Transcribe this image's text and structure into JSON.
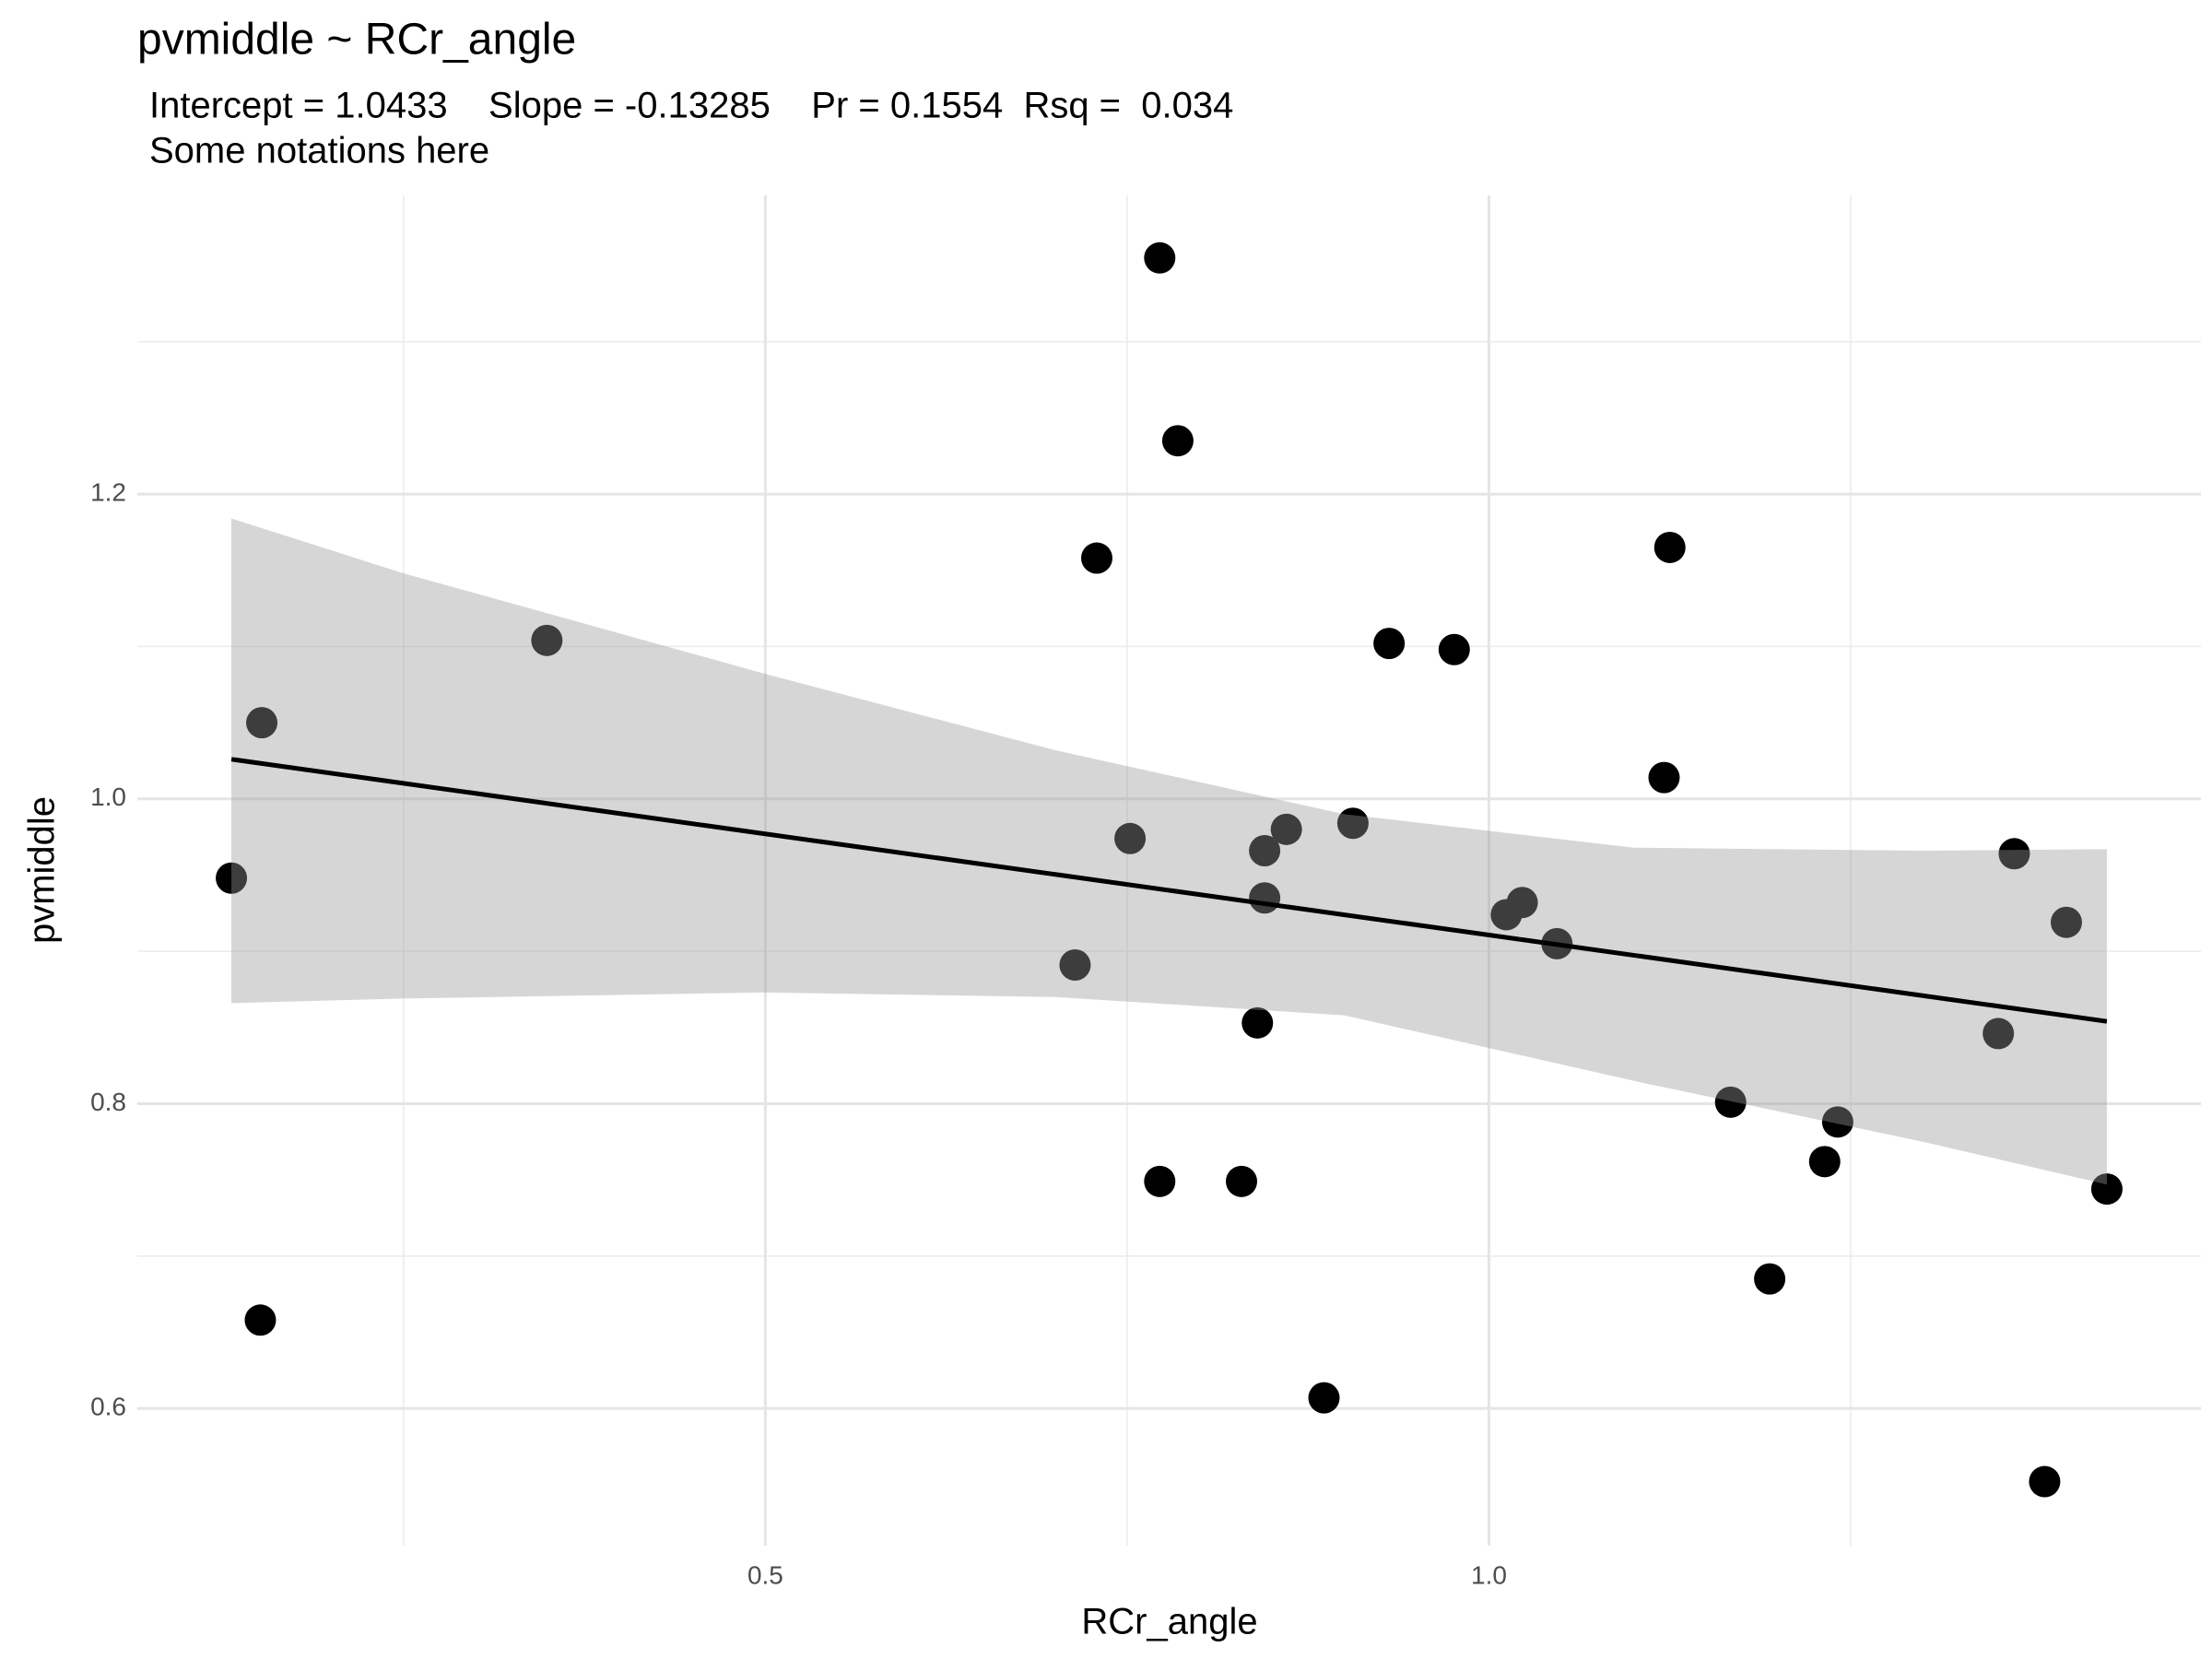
{
  "chart_data": {
    "type": "scatter",
    "title": "pvmiddle ~ RCr_angle",
    "subtitle": [
      "Intercept = 1.0433    Slope = -0.13285    Pr = 0.1554  Rsq =  0.034",
      "Some notations here"
    ],
    "x_label": "RCr_angle",
    "y_label": "pvmiddle",
    "color": "#000000",
    "x": [
      0.7725,
      0.785,
      0.729,
      0.349,
      0.152,
      0.131,
      0.151,
      0.931,
      0.976,
      1.125,
      1.121,
      0.752,
      0.714,
      0.845,
      0.86,
      0.906,
      0.845,
      0.84,
      1.012,
      1.023,
      1.047,
      0.7725,
      0.829,
      0.886,
      1.167,
      1.194,
      1.241,
      1.232,
      1.363,
      1.399,
      1.352,
      1.384,
      1.427
    ],
    "values": [
      1.355,
      1.235,
      1.158,
      1.104,
      1.05,
      0.948,
      0.658,
      1.102,
      1.098,
      1.165,
      1.014,
      0.974,
      0.891,
      0.966,
      0.98,
      0.984,
      0.935,
      0.853,
      0.924,
      0.932,
      0.905,
      0.749,
      0.749,
      0.607,
      0.801,
      0.685,
      0.788,
      0.762,
      0.964,
      0.919,
      0.846,
      0.552,
      0.744
    ],
    "fit": {
      "x": [
        0.131,
        1.427
      ],
      "values": [
        1.026,
        0.854
      ],
      "color": "#000000"
    },
    "band": {
      "x": [
        0.131,
        0.25,
        0.5,
        0.7,
        0.9,
        1.1,
        1.3,
        1.427
      ],
      "upper": [
        1.184,
        1.148,
        1.082,
        1.032,
        0.99,
        0.968,
        0.966,
        0.967
      ],
      "lower": [
        0.866,
        0.869,
        0.873,
        0.87,
        0.858,
        0.815,
        0.775,
        0.747
      ],
      "color": "#999999"
    },
    "xlim": [
      0.066,
      1.492
    ],
    "ylim": [
      0.51,
      1.396
    ],
    "xticks": [
      0.5,
      {
        "value": 1,
        "label": "1.0"
      }
    ],
    "xminor": [
      0.25,
      0.75,
      1.25
    ],
    "yticks": [
      0.6,
      0.8,
      {
        "value": 1,
        "label": "1.0"
      },
      1.2
    ],
    "yminor": [
      0.7,
      0.9,
      1.1,
      1.3
    ],
    "grid": true
  }
}
